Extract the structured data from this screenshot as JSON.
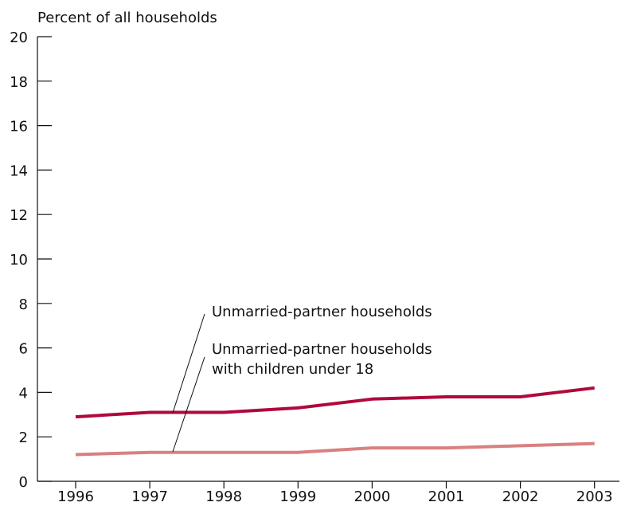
{
  "chart_data": {
    "type": "line",
    "title": "",
    "ylabel": "Percent of all households",
    "xlabel": "",
    "x": [
      1996,
      1997,
      1998,
      1999,
      2000,
      2001,
      2002,
      2003
    ],
    "x_tick_labels": [
      "1996",
      "1997",
      "1998",
      "1999",
      "2000",
      "2001",
      "2002",
      "2003"
    ],
    "ylim": [
      0,
      20
    ],
    "y_ticks": [
      0,
      2,
      4,
      6,
      8,
      10,
      12,
      14,
      16,
      18,
      20
    ],
    "y_tick_labels": [
      "0",
      "2",
      "4",
      "6",
      "8",
      "10",
      "12",
      "14",
      "16",
      "18",
      "20"
    ],
    "grid": false,
    "series": [
      {
        "name": "Unmarried-partner households",
        "color": "#b0093c",
        "values": [
          2.9,
          3.1,
          3.1,
          3.3,
          3.7,
          3.8,
          3.8,
          4.2
        ]
      },
      {
        "name": "Unmarried-partner households with children under 18",
        "name_lines": [
          "Unmarried-partner households",
          "with children under 18"
        ],
        "color": "#d98080",
        "values": [
          1.2,
          1.3,
          1.3,
          1.3,
          1.5,
          1.5,
          1.6,
          1.7
        ]
      }
    ]
  }
}
